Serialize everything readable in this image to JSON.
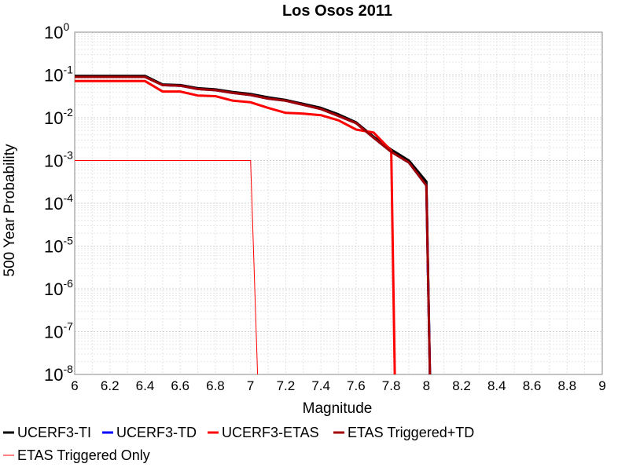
{
  "chart_data": {
    "type": "line",
    "title": "Los Osos 2011",
    "xlabel": "Magnitude",
    "ylabel": "500 Year Probability",
    "xlim": [
      6,
      9
    ],
    "ylim": [
      1e-08,
      1
    ],
    "yscale": "log",
    "grid": true,
    "legend_position": "bottom",
    "x_ticks": [
      "6",
      "6.2",
      "6.4",
      "6.6",
      "6.8",
      "7",
      "7.2",
      "7.4",
      "7.6",
      "7.8",
      "8",
      "8.2",
      "8.4",
      "8.6",
      "8.8",
      "9"
    ],
    "y_ticks": [
      {
        "base": "10",
        "exp": "0"
      },
      {
        "base": "10",
        "exp": "-1"
      },
      {
        "base": "10",
        "exp": "-2"
      },
      {
        "base": "10",
        "exp": "-3"
      },
      {
        "base": "10",
        "exp": "-4"
      },
      {
        "base": "10",
        "exp": "-5"
      },
      {
        "base": "10",
        "exp": "-6"
      },
      {
        "base": "10",
        "exp": "-7"
      },
      {
        "base": "10",
        "exp": "-8"
      }
    ],
    "series": [
      {
        "name": "UCERF3-TI",
        "color": "#000000",
        "width": 3,
        "x": [
          6.0,
          6.1,
          6.2,
          6.3,
          6.4,
          6.5,
          6.6,
          6.7,
          6.8,
          6.9,
          7.0,
          7.1,
          7.2,
          7.3,
          7.4,
          7.5,
          7.6,
          7.7,
          7.8,
          7.9,
          8.0,
          8.02
        ],
        "y": [
          0.095,
          0.095,
          0.095,
          0.095,
          0.095,
          0.06,
          0.058,
          0.049,
          0.046,
          0.04,
          0.036,
          0.03,
          0.026,
          0.021,
          0.017,
          0.012,
          0.0078,
          0.0036,
          0.0018,
          0.001,
          0.00032,
          1e-08
        ]
      },
      {
        "name": "UCERF3-TD",
        "color": "#0000ff",
        "width": 3,
        "x": [
          6.0,
          6.1,
          6.2,
          6.3,
          6.4,
          6.5,
          6.6,
          6.7,
          6.8,
          6.9,
          7.0,
          7.1,
          7.2,
          7.3,
          7.4,
          7.5,
          7.6,
          7.7,
          7.8,
          7.9,
          8.0,
          8.02
        ],
        "y": [
          0.09,
          0.09,
          0.09,
          0.09,
          0.09,
          0.058,
          0.056,
          0.047,
          0.044,
          0.038,
          0.034,
          0.028,
          0.025,
          0.02,
          0.016,
          0.011,
          0.0075,
          0.0034,
          0.0016,
          0.0009,
          0.00026,
          1e-08
        ]
      },
      {
        "name": "UCERF3-ETAS",
        "color": "#ff0000",
        "width": 3,
        "x": [
          6.0,
          6.1,
          6.2,
          6.3,
          6.4,
          6.5,
          6.6,
          6.7,
          6.8,
          6.9,
          7.0,
          7.1,
          7.2,
          7.3,
          7.4,
          7.5,
          7.6,
          7.7,
          7.8,
          7.82
        ],
        "y": [
          0.072,
          0.072,
          0.072,
          0.072,
          0.072,
          0.041,
          0.041,
          0.033,
          0.032,
          0.025,
          0.023,
          0.017,
          0.013,
          0.0125,
          0.0115,
          0.0087,
          0.0053,
          0.0045,
          0.0017,
          1e-08
        ]
      },
      {
        "name": "ETAS Triggered+TD",
        "color": "#a00000",
        "width": 3,
        "x": [
          6.0,
          6.1,
          6.2,
          6.3,
          6.4,
          6.5,
          6.6,
          6.7,
          6.8,
          6.9,
          7.0,
          7.1,
          7.2,
          7.3,
          7.4,
          7.5,
          7.6,
          7.7,
          7.8,
          7.9,
          8.0,
          8.02
        ],
        "y": [
          0.09,
          0.09,
          0.09,
          0.09,
          0.09,
          0.058,
          0.056,
          0.047,
          0.044,
          0.038,
          0.034,
          0.028,
          0.025,
          0.02,
          0.016,
          0.011,
          0.0075,
          0.0034,
          0.0016,
          0.0009,
          0.00026,
          1e-08
        ]
      },
      {
        "name": "ETAS Triggered Only",
        "color": "#ff0000",
        "width": 1,
        "x": [
          6.0,
          7.0,
          7.04
        ],
        "y": [
          0.001,
          0.001,
          1e-08
        ]
      }
    ]
  }
}
